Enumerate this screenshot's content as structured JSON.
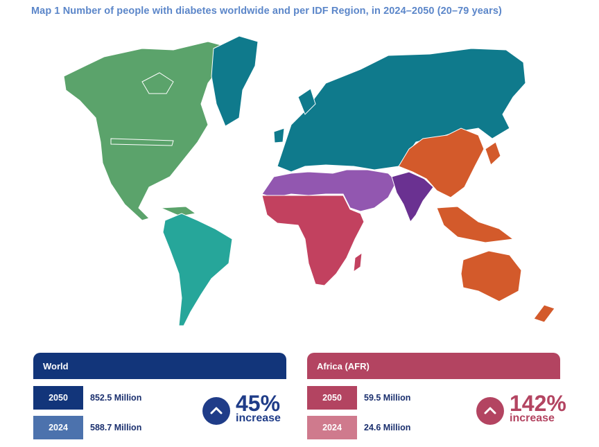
{
  "title": "Map 1 Number of people with diabetes worldwide and per IDF Region, in 2024–2050 (20–79 years)",
  "map": {
    "regions": [
      {
        "name": "North America and Caribbean",
        "color": "#5ba36b"
      },
      {
        "name": "South and Central America",
        "color": "#26a69a"
      },
      {
        "name": "Europe",
        "color": "#0f7a8c"
      },
      {
        "name": "Middle East and North Africa",
        "color": "#9257b0"
      },
      {
        "name": "Africa",
        "color": "#c2415f"
      },
      {
        "name": "South-East Asia",
        "color": "#6a3191"
      },
      {
        "name": "Western Pacific",
        "color": "#d35a2b"
      }
    ]
  },
  "panels": {
    "world": {
      "header": "World",
      "header_color": "#12357a",
      "rows": [
        {
          "year": "2050",
          "value": "852.5 Million",
          "color": "#12357a"
        },
        {
          "year": "2024",
          "value": "588.7 Million",
          "color": "#4c72ad"
        }
      ],
      "percent": "45%",
      "increase": "increase",
      "accent": "#1f3c88",
      "icon": "chevron-up-icon"
    },
    "africa": {
      "header": "Africa (AFR)",
      "header_color": "#b34461",
      "rows": [
        {
          "year": "2050",
          "value": "59.5 Million",
          "color": "#b34461"
        },
        {
          "year": "2024",
          "value": "24.6 Million",
          "color": "#cf7a8d"
        }
      ],
      "percent": "142%",
      "increase": "increase",
      "accent": "#b34461",
      "icon": "chevron-up-icon"
    }
  }
}
